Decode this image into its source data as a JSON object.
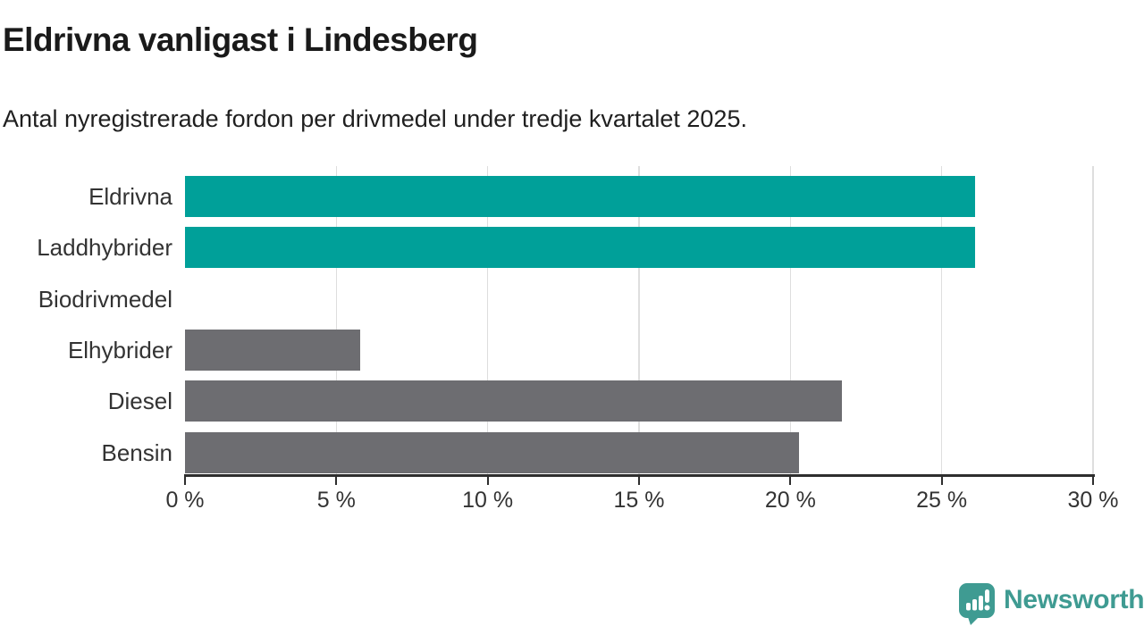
{
  "palette": {
    "highlight": "#00a099",
    "muted": "#6d6d71",
    "grid": "#dedede",
    "axis": "#2e2e2e",
    "brand": "#3f9b92"
  },
  "chart_data": {
    "type": "bar",
    "orientation": "horizontal",
    "title": "Eldrivna vanligast i Lindesberg",
    "subtitle": "Antal nyregistrerade fordon per drivmedel under tredje kvartalet 2025.",
    "categories": [
      "Eldrivna",
      "Laddhybrider",
      "Biodrivmedel",
      "Elhybrider",
      "Diesel",
      "Bensin"
    ],
    "values": [
      26.1,
      26.1,
      0,
      5.8,
      21.7,
      20.3
    ],
    "unit": "%",
    "bar_colors": [
      "highlight",
      "highlight",
      "muted",
      "muted",
      "muted",
      "muted"
    ],
    "xlim": [
      0,
      30
    ],
    "xticks": [
      0,
      5,
      10,
      15,
      20,
      25,
      30
    ],
    "xtick_labels": [
      "0 %",
      "5 %",
      "10 %",
      "15 %",
      "20 %",
      "25 %",
      "30 %"
    ],
    "grid": "vertical",
    "legend": false
  },
  "footer": {
    "brand": "Newsworthy"
  }
}
